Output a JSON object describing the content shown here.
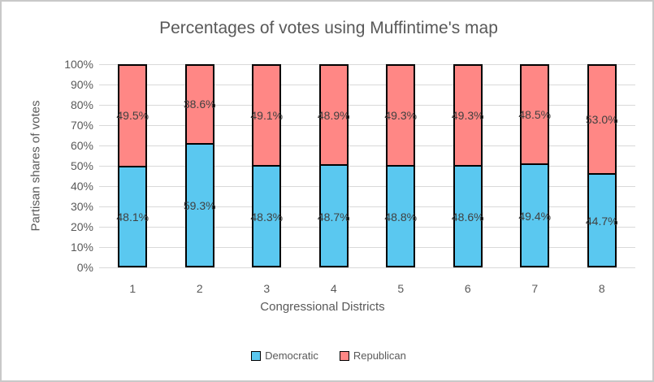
{
  "window": {
    "background": "#ffffff",
    "frame_border_color": "#c9c9c9"
  },
  "chart_data": {
    "type": "bar",
    "variant": "100-percent-stacked-column",
    "title": "Percentages of votes using Muffintime's map",
    "xlabel": "Congressional Districts",
    "ylabel": "Partisan shares of votes",
    "categories": [
      "1",
      "2",
      "3",
      "4",
      "5",
      "6",
      "7",
      "8"
    ],
    "series": [
      {
        "name": "Democratic",
        "color": "#5AC8F0",
        "values": [
          48.1,
          59.3,
          48.3,
          48.7,
          48.8,
          48.6,
          49.4,
          44.7
        ]
      },
      {
        "name": "Republican",
        "color": "#FF8785",
        "values": [
          49.5,
          38.6,
          49.1,
          48.9,
          49.3,
          49.3,
          48.5,
          53.0
        ]
      }
    ],
    "data_labels": {
      "democratic": [
        "48.1%",
        "59.3%",
        "48.3%",
        "48.7%",
        "48.8%",
        "48.6%",
        "49.4%",
        "44.7%"
      ],
      "republican": [
        "49.5%",
        "38.6%",
        "49.1%",
        "48.9%",
        "49.3%",
        "49.3%",
        "48.5%",
        "53.0%"
      ]
    },
    "y_ticks": [
      "0%",
      "10%",
      "20%",
      "30%",
      "40%",
      "50%",
      "60%",
      "70%",
      "80%",
      "90%",
      "100%"
    ],
    "ylim": [
      0,
      100
    ],
    "grid": true,
    "legend_position": "bottom",
    "colors": {
      "gridline": "#d9d9d9",
      "bar_border": "#000000",
      "axis_text": "#595959",
      "data_label_text": "#404040"
    }
  }
}
